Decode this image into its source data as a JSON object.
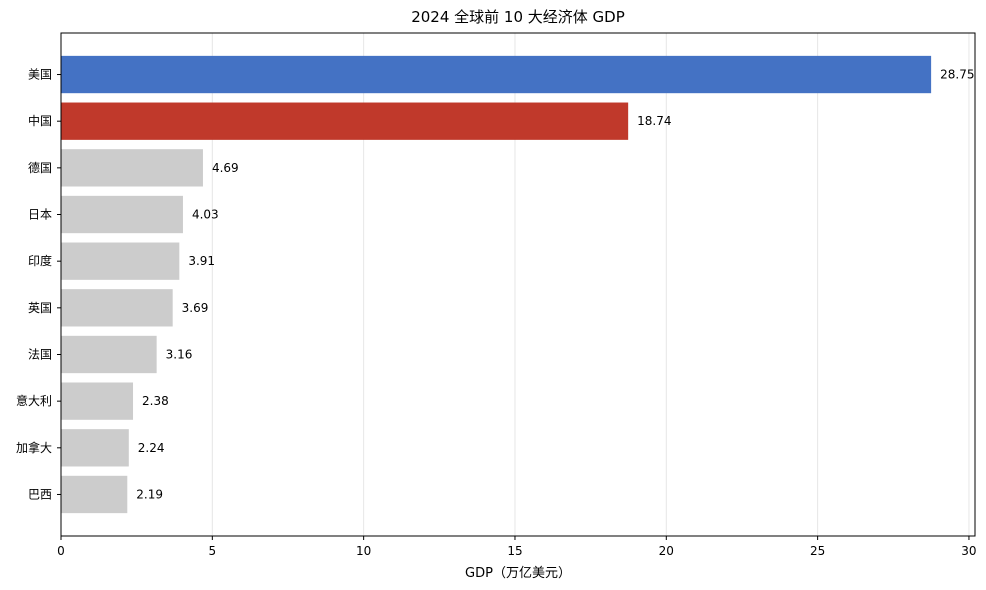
{
  "chart_data": {
    "type": "bar",
    "orientation": "horizontal",
    "title": "2024 全球前 10 大经济体 GDP",
    "xlabel": "GDP（万亿美元）",
    "ylabel": "",
    "categories": [
      "美国",
      "中国",
      "德国",
      "日本",
      "印度",
      "英国",
      "法国",
      "意大利",
      "加拿大",
      "巴西"
    ],
    "values": [
      28.75,
      18.74,
      4.69,
      4.03,
      3.91,
      3.69,
      3.16,
      2.38,
      2.24,
      2.19
    ],
    "value_labels": [
      "28.75",
      "18.74",
      "4.69",
      "4.03",
      "3.91",
      "3.69",
      "3.16",
      "2.38",
      "2.24",
      "2.19"
    ],
    "bar_colors": [
      "#4472c4",
      "#c0392b",
      "#cccccc",
      "#cccccc",
      "#cccccc",
      "#cccccc",
      "#cccccc",
      "#cccccc",
      "#cccccc",
      "#cccccc"
    ],
    "xlim": [
      0,
      30.2
    ],
    "xticks": [
      0,
      5,
      10,
      15,
      20,
      25,
      30
    ],
    "xtick_labels": [
      "0",
      "5",
      "10",
      "15",
      "20",
      "25",
      "30"
    ],
    "grid": "vertical",
    "legend": "none"
  }
}
